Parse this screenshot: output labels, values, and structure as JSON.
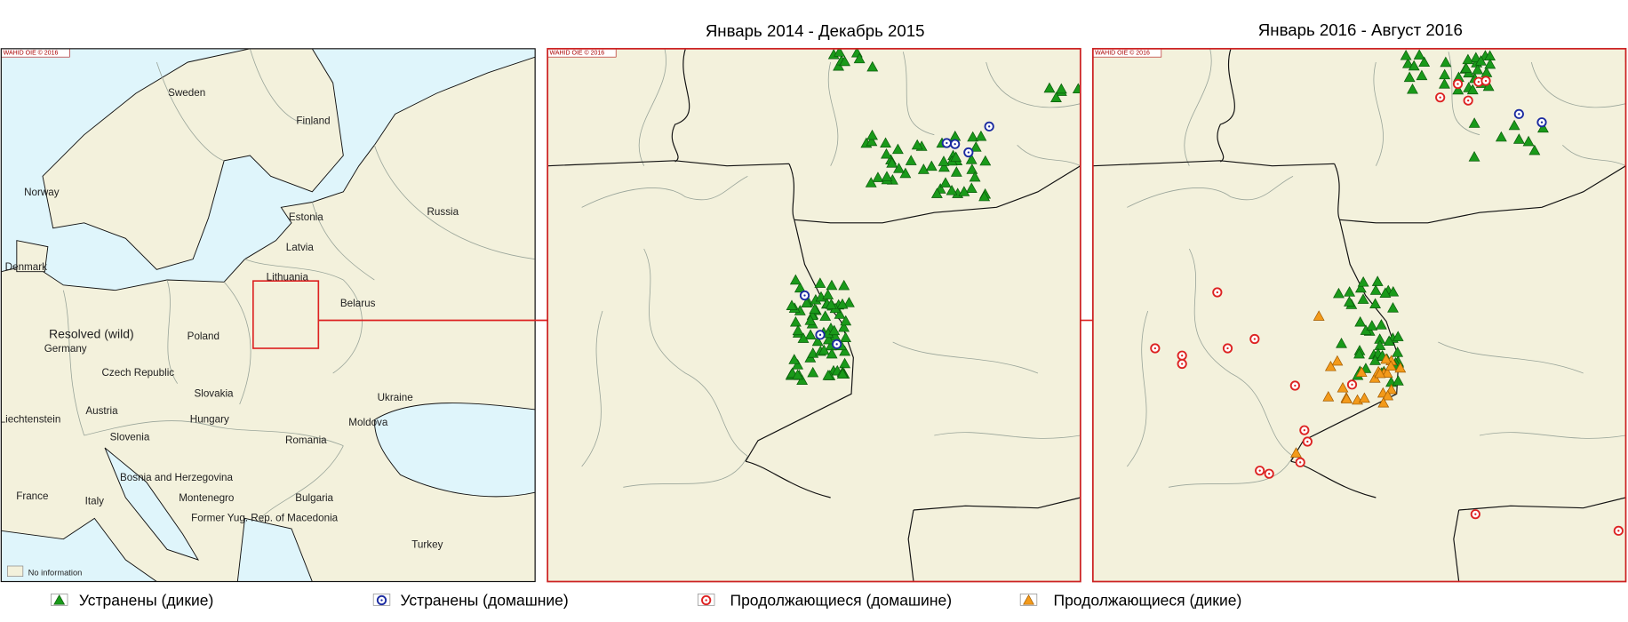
{
  "titles": [
    "Январь 2014 - Декабрь 2015",
    "Январь 2016 - Август 2016"
  ],
  "overview_map": {
    "watermark": "WAHID OIE © 2016",
    "status_label": "Resolved (wild)",
    "no_information": "No information",
    "labels": [
      "Sweden",
      "Finland",
      "Norway",
      "Estonia",
      "Russia",
      "Latvia",
      "Denmark",
      "Lithuania",
      "Belarus",
      "Poland",
      "Germany",
      "Czech Republic",
      "Slovakia",
      "Ukraine",
      "Austria",
      "Hungary",
      "Liechtenstein",
      "Moldova",
      "Slovenia",
      "Romania",
      "Bosnia and Herzegovina",
      "Montenegro",
      "Bulgaria",
      "France",
      "Italy",
      "Former Yug. Rep. of Macedonia",
      "Turkey"
    ]
  },
  "detail_maps": [
    {
      "watermark": "WAHID OIE © 2016"
    },
    {
      "watermark": "WAHID OIE © 2016"
    }
  ],
  "legend": [
    "Устранены (дикие)",
    "Устранены (домашние)",
    "Продолжающиеся (домашине)",
    "Продолжающиеся (дикие)"
  ]
}
